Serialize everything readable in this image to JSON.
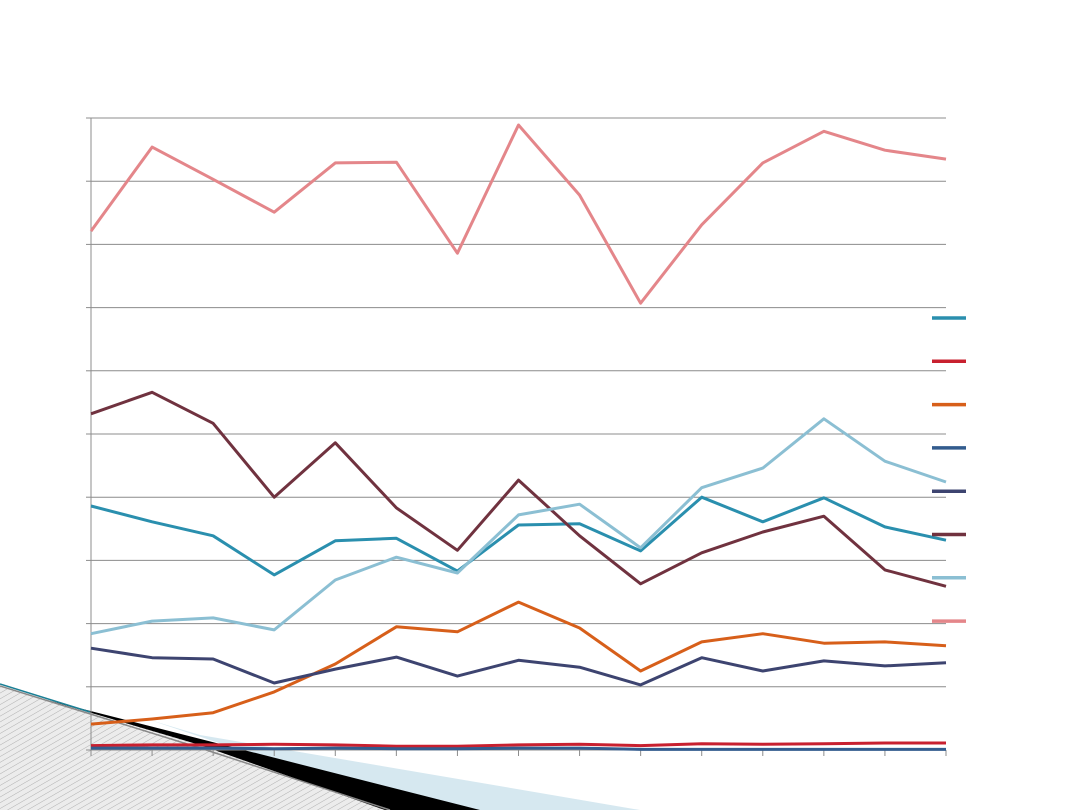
{
  "chart_data": {
    "type": "line",
    "title": "",
    "xlabel": "",
    "ylabel": "",
    "x": [
      1,
      2,
      3,
      4,
      5,
      6,
      7,
      8,
      9,
      10,
      11,
      12,
      13,
      14,
      15
    ],
    "ylim": [
      0,
      10
    ],
    "grid": true,
    "legend_placement": "right",
    "series": [
      {
        "color": "#2A8FAE",
        "values": [
          3.86,
          3.61,
          3.39,
          2.77,
          3.31,
          3.35,
          2.83,
          3.56,
          3.58,
          3.15,
          4.0,
          3.61,
          3.99,
          3.53,
          3.32
        ]
      },
      {
        "color": "#C8202F",
        "values": [
          0.07,
          0.08,
          0.08,
          0.09,
          0.08,
          0.06,
          0.06,
          0.08,
          0.09,
          0.07,
          0.1,
          0.09,
          0.1,
          0.11,
          0.11
        ]
      },
      {
        "color": "#D75F1A",
        "values": [
          0.41,
          0.49,
          0.59,
          0.92,
          1.36,
          1.95,
          1.87,
          2.34,
          1.93,
          1.25,
          1.71,
          1.84,
          1.69,
          1.71,
          1.65
        ]
      },
      {
        "color": "#335C8E",
        "values": [
          0.03,
          0.03,
          0.03,
          0.02,
          0.03,
          0.02,
          0.02,
          0.03,
          0.03,
          0.01,
          0.01,
          0.01,
          0.01,
          0.01,
          0.01
        ]
      },
      {
        "color": "#3D4470",
        "values": [
          1.61,
          1.46,
          1.44,
          1.06,
          1.28,
          1.47,
          1.17,
          1.42,
          1.31,
          1.03,
          1.46,
          1.25,
          1.41,
          1.33,
          1.38
        ]
      },
      {
        "color": "#70323F",
        "values": [
          5.32,
          5.66,
          5.17,
          4.0,
          4.86,
          3.83,
          3.16,
          4.27,
          3.39,
          2.63,
          3.12,
          3.45,
          3.7,
          2.85,
          2.59
        ]
      },
      {
        "color": "#8BBFD3",
        "values": [
          1.84,
          2.04,
          2.09,
          1.9,
          2.69,
          3.05,
          2.8,
          3.72,
          3.89,
          3.2,
          4.15,
          4.46,
          5.24,
          4.57,
          4.24
        ]
      },
      {
        "color": "#E4868A",
        "values": [
          8.21,
          9.54,
          9.03,
          8.51,
          9.29,
          9.3,
          7.86,
          9.89,
          8.78,
          7.07,
          8.31,
          9.29,
          9.79,
          9.49,
          9.35
        ]
      }
    ]
  }
}
